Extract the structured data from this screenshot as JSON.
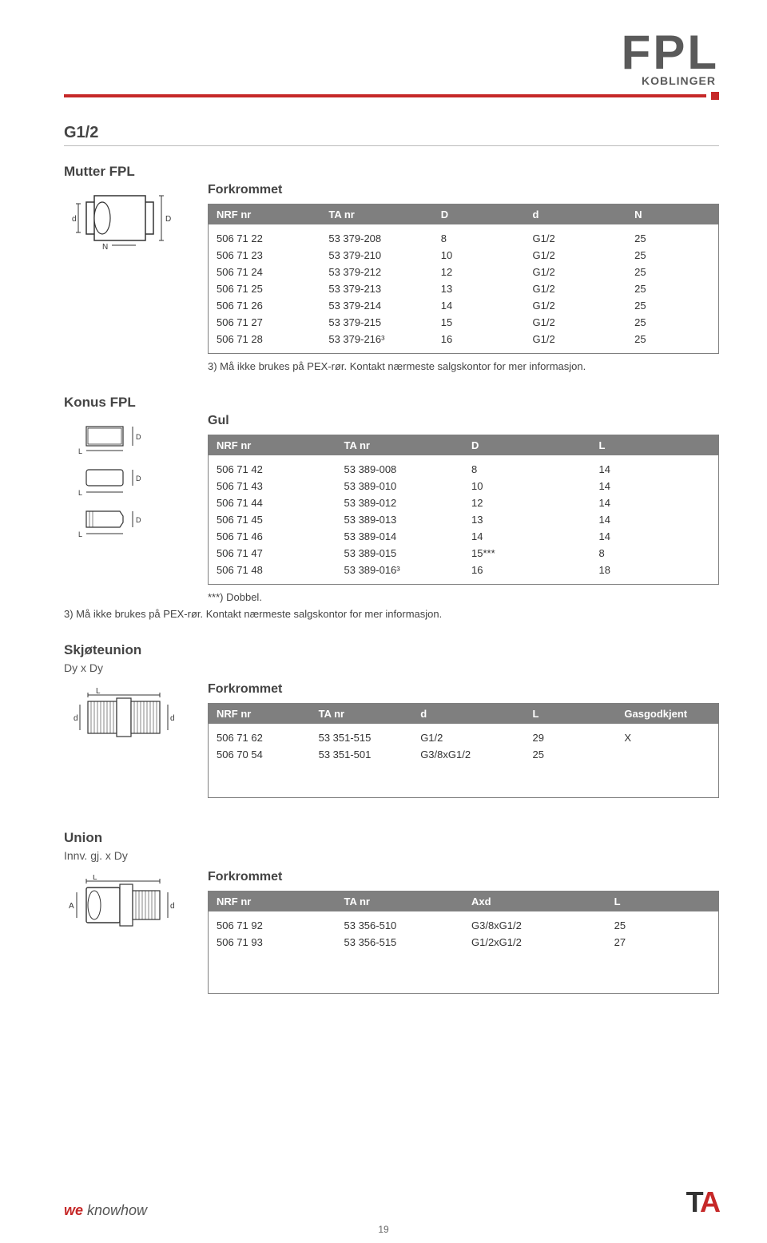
{
  "brand": {
    "main": "FPL",
    "sub": "KOBLINGER"
  },
  "section": "G1/2",
  "colors": {
    "rule": "#c62828",
    "header_bg": "#7f7f7f",
    "header_fg": "#ffffff",
    "text": "#3a3a3a"
  },
  "mutter": {
    "title": "Mutter FPL",
    "variant": "Forkrommet",
    "columns": [
      "NRF nr",
      "TA nr",
      "D",
      "d",
      "N"
    ],
    "rows": [
      [
        "506 71 22",
        "53 379-208",
        "8",
        "G1/2",
        "25"
      ],
      [
        "506 71 23",
        "53 379-210",
        "10",
        "G1/2",
        "25"
      ],
      [
        "506 71 24",
        "53 379-212",
        "12",
        "G1/2",
        "25"
      ],
      [
        "506 71 25",
        "53 379-213",
        "13",
        "G1/2",
        "25"
      ],
      [
        "506 71 26",
        "53 379-214",
        "14",
        "G1/2",
        "25"
      ],
      [
        "506 71 27",
        "53 379-215",
        "15",
        "G1/2",
        "25"
      ],
      [
        "506 71 28",
        "53 379-216³",
        "16",
        "G1/2",
        "25"
      ]
    ],
    "note": "3) Må ikke brukes på PEX-rør. Kontakt nærmeste salgskontor for mer informasjon."
  },
  "konus": {
    "title": "Konus FPL",
    "variant": "Gul",
    "columns": [
      "NRF nr",
      "TA nr",
      "D",
      "L"
    ],
    "rows": [
      [
        "506 71 42",
        "53 389-008",
        "8",
        "14"
      ],
      [
        "506 71 43",
        "53 389-010",
        "10",
        "14"
      ],
      [
        "506 71 44",
        "53 389-012",
        "12",
        "14"
      ],
      [
        "506 71 45",
        "53 389-013",
        "13",
        "14"
      ],
      [
        "506 71 46",
        "53 389-014",
        "14",
        "14"
      ],
      [
        "506 71 47",
        "53 389-015",
        "15***",
        "8"
      ],
      [
        "506 71 48",
        "53 389-016³",
        "16",
        "18"
      ]
    ],
    "note_star": "***) Dobbel.",
    "note_below": "3) Må ikke brukes på PEX-rør. Kontakt nærmeste salgskontor for mer informasjon."
  },
  "skjoteunion": {
    "title": "Skjøteunion",
    "subtitle": "Dy x Dy",
    "variant": "Forkrommet",
    "columns": [
      "NRF nr",
      "TA nr",
      "d",
      "L",
      "Gasgodkjent"
    ],
    "rows": [
      [
        "506 71 62",
        "53 351-515",
        "G1/2",
        "29",
        "X"
      ],
      [
        "506 70 54",
        "53 351-501",
        "G3/8xG1/2",
        "25",
        ""
      ]
    ]
  },
  "union": {
    "title": "Union",
    "subtitle": "Innv. gj. x Dy",
    "variant": "Forkrommet",
    "columns": [
      "NRF nr",
      "TA nr",
      "Axd",
      "L"
    ],
    "rows": [
      [
        "506 71 92",
        "53 356-510",
        "G3/8xG1/2",
        "25"
      ],
      [
        "506 71 93",
        "53 356-515",
        "G1/2xG1/2",
        "27"
      ]
    ]
  },
  "footer": {
    "we": "we",
    "knowhow": " knowhow",
    "logo_t": "T",
    "logo_a": "A",
    "page": "19"
  }
}
